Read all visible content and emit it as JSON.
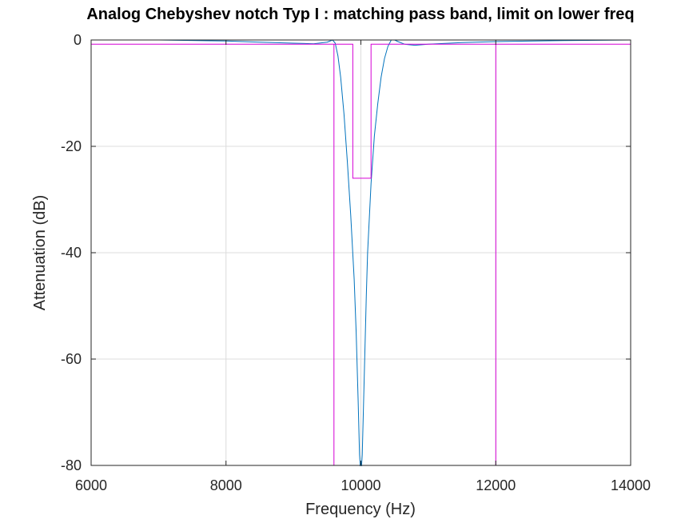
{
  "chart_data": {
    "type": "line",
    "title": "Analog Chebyshev notch Typ I : matching pass band, limit on lower freq",
    "xlabel": "Frequency (Hz)",
    "ylabel": "Attenuation (dB)",
    "xlim": [
      6000,
      14000
    ],
    "ylim": [
      -80,
      0
    ],
    "xticks": [
      6000,
      8000,
      10000,
      12000,
      14000
    ],
    "yticks": [
      0,
      -20,
      -40,
      -60,
      -80
    ],
    "xtick_labels": [
      "6000",
      "8000",
      "10000",
      "12000",
      "14000"
    ],
    "ytick_labels": [
      "0",
      "-20",
      "-40",
      "-60",
      "-80"
    ],
    "grid": true,
    "series": [
      {
        "color": "#0072bd",
        "x": [
          6000,
          7000,
          8000,
          8500,
          9000,
          9300,
          9500,
          9580,
          9620,
          9660,
          9700,
          9750,
          9800,
          9850,
          9900,
          9930,
          9960,
          9980,
          10000,
          10020,
          10040,
          10060,
          10080,
          10100,
          10150,
          10200,
          10250,
          10300,
          10350,
          10400,
          10450,
          10500,
          10550,
          10650,
          10800,
          11000,
          11500,
          12000,
          13000,
          14000
        ],
        "y": [
          0,
          0,
          -0.2,
          -0.4,
          -0.6,
          -0.7,
          -0.4,
          0,
          -0.6,
          -3,
          -7,
          -14,
          -23,
          -33,
          -45,
          -55,
          -68,
          -78,
          -82,
          -78,
          -68,
          -58,
          -48,
          -40,
          -27,
          -18,
          -12,
          -7,
          -3.5,
          -1.2,
          0,
          0,
          -0.3,
          -0.8,
          -1,
          -0.8,
          -0.5,
          -0.3,
          -0.1,
          0
        ]
      },
      {
        "color": "#d600d6",
        "x": [
          6000,
          9600,
          9600,
          9600,
          9880,
          9880,
          10150,
          10150,
          12000,
          12000,
          12000,
          14000
        ],
        "y": [
          -0.8,
          -0.8,
          -80,
          -0.8,
          -0.8,
          -26,
          -26,
          -0.8,
          -0.8,
          -80,
          -0.8,
          -0.8
        ]
      },
      {
        "color": "#d600d6",
        "x": [
          6000,
          9580,
          9580,
          9880,
          9880,
          10150,
          10150,
          14000
        ],
        "y": [
          0,
          0,
          0,
          0,
          0,
          0,
          0,
          0
        ]
      }
    ]
  }
}
